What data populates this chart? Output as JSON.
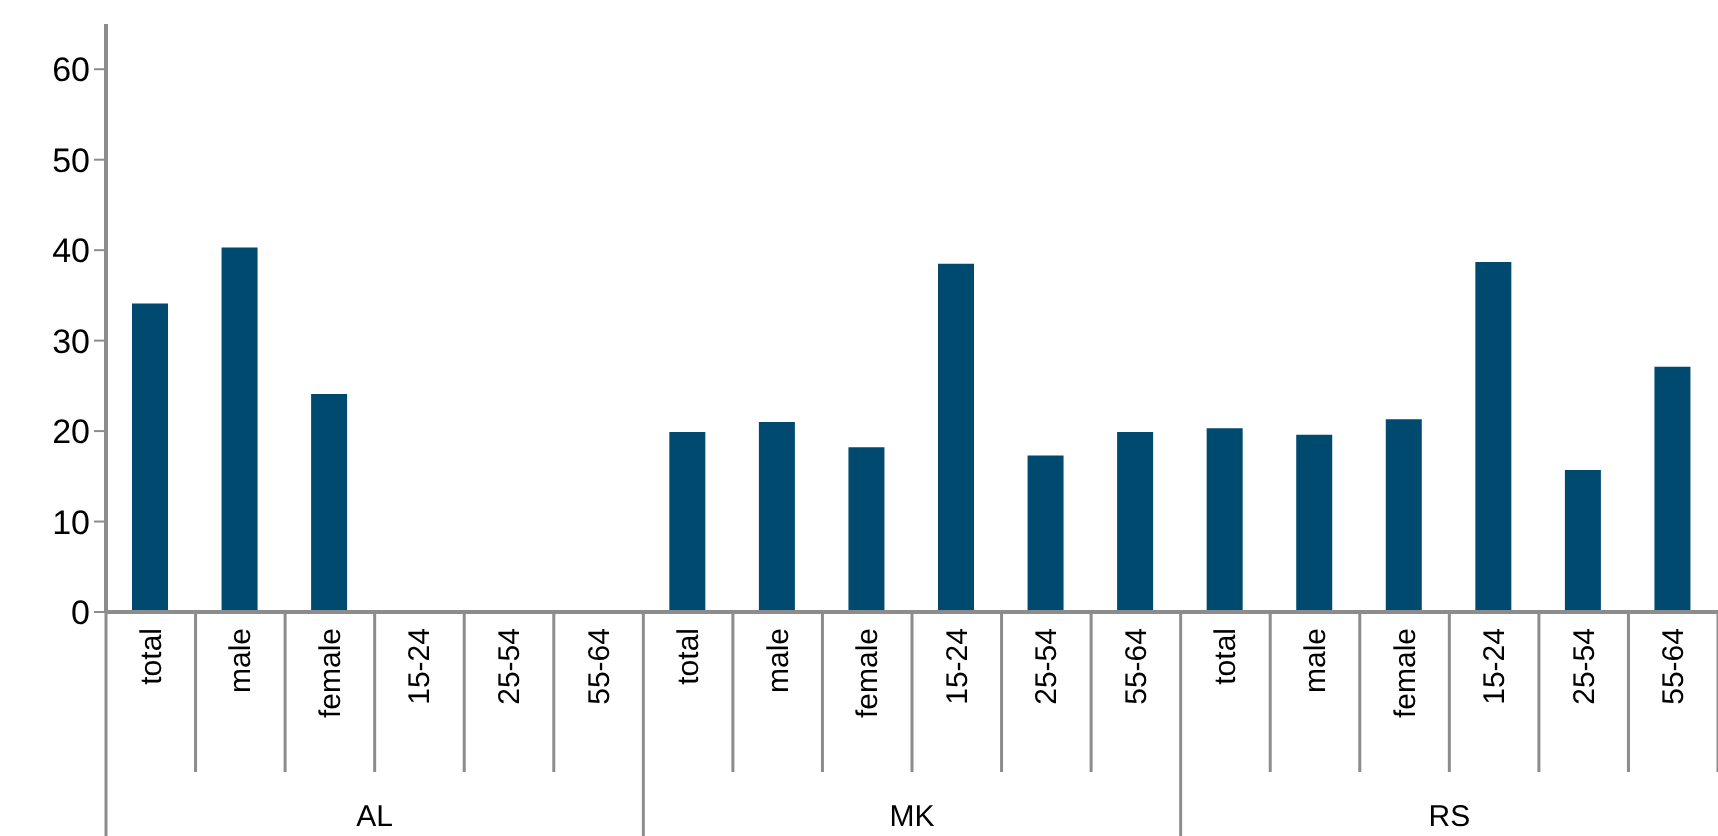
{
  "chart_data": {
    "type": "bar",
    "categories": [
      "total",
      "male",
      "female",
      "15-24",
      "25-54",
      "55-64",
      "total",
      "male",
      "female",
      "15-24",
      "25-54",
      "55-64",
      "total",
      "male",
      "female",
      "15-24",
      "25-54",
      "55-64"
    ],
    "values": [
      34.1,
      40.3,
      24.1,
      null,
      null,
      null,
      19.9,
      21.0,
      18.2,
      38.5,
      17.3,
      19.9,
      20.3,
      19.6,
      21.3,
      38.7,
      15.7,
      27.1
    ],
    "color": "#00496f",
    "ylim": [
      0,
      65
    ],
    "yticks": [
      0,
      10,
      20,
      30,
      40,
      50,
      60
    ],
    "annotations": [
      "AL",
      "MK",
      "RS"
    ]
  }
}
